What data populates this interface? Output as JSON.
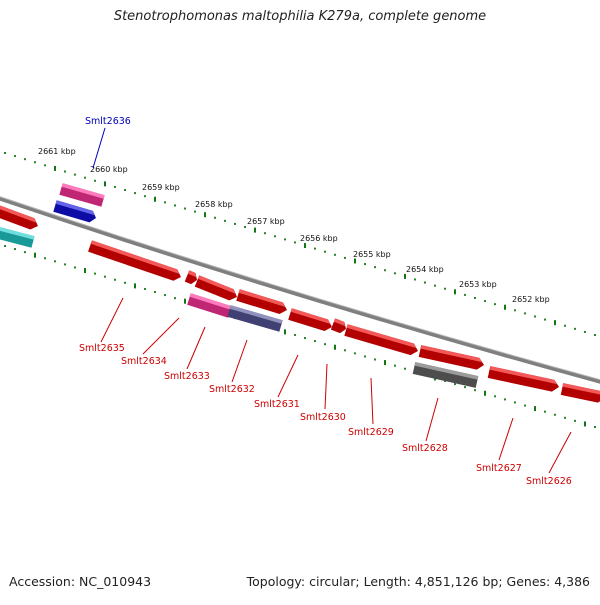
{
  "title": "Stenotrophomonas maltophilia K279a, complete genome",
  "footer": {
    "accession": "Accession: NC_010943",
    "summary": "Topology: circular; Length: 4,851,126 bp; Genes: 4,386"
  },
  "colors": {
    "forward_gene": "#ee0000",
    "reverse_gene_highlight": "#ff3399",
    "blue_gene": "#1111dd",
    "cyan_gene": "#22cccc",
    "purple_gene": "#555599",
    "gray_gene": "#666666",
    "backbone": "#888888",
    "tick_green": "#117711",
    "label_red": "#cc0000",
    "label_blue": "#0000bb"
  },
  "scale_labels": [
    "2661 kbp",
    "2660 kbp",
    "2659 kbp",
    "2658 kbp",
    "2657 kbp",
    "2656 kbp",
    "2655 kbp",
    "2654 kbp",
    "2653 kbp",
    "2652 kbp"
  ],
  "gene_labels": [
    {
      "name": "Smlt2636",
      "color": "blue"
    },
    {
      "name": "Smlt2635",
      "color": "red"
    },
    {
      "name": "Smlt2634",
      "color": "red"
    },
    {
      "name": "Smlt2633",
      "color": "red"
    },
    {
      "name": "Smlt2632",
      "color": "red"
    },
    {
      "name": "Smlt2631",
      "color": "red"
    },
    {
      "name": "Smlt2630",
      "color": "red"
    },
    {
      "name": "Smlt2629",
      "color": "red"
    },
    {
      "name": "Smlt2628",
      "color": "red"
    },
    {
      "name": "Smlt2627",
      "color": "red"
    },
    {
      "name": "Smlt2626",
      "color": "red"
    }
  ]
}
